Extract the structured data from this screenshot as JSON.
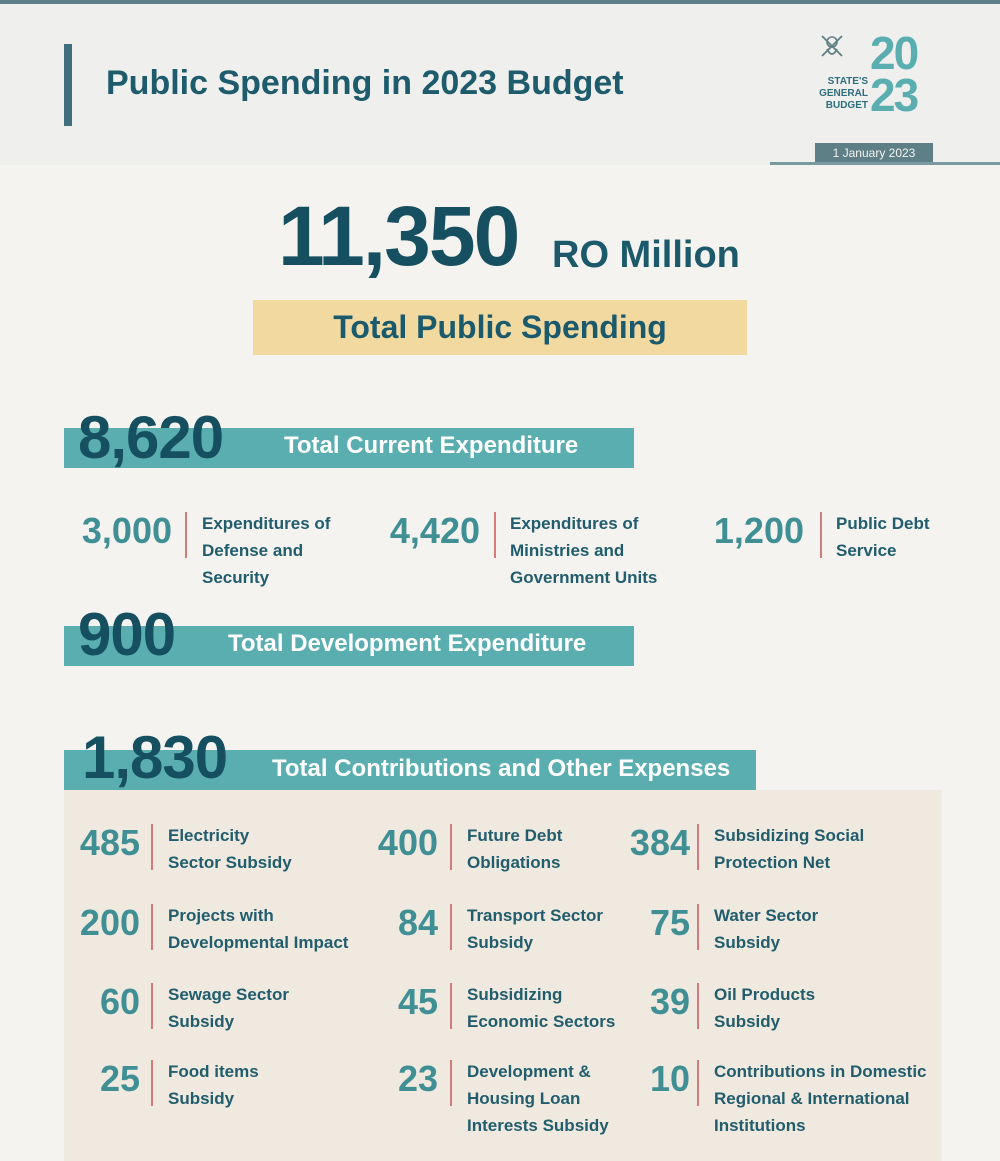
{
  "header": {
    "title": "Public Spending in 2023 Budget",
    "logo": {
      "line1": "STATE'S",
      "line2": "GENERAL",
      "line3": "BUDGET",
      "year_top": "20",
      "year_bottom": "23"
    },
    "date": "1 January 2023"
  },
  "total": {
    "value": "11,350",
    "unit": "RO Million",
    "label": "Total Public Spending"
  },
  "current": {
    "value": "8,620",
    "label": "Total Current Expenditure",
    "items": [
      {
        "value": "3,000",
        "label": "Expenditures of\nDefense and\nSecurity"
      },
      {
        "value": "4,420",
        "label": "Expenditures of\nMinistries and\nGovernment Units"
      },
      {
        "value": "1,200",
        "label": "Public Debt\nService"
      }
    ]
  },
  "development": {
    "value": "900",
    "label": "Total Development Expenditure"
  },
  "contributions": {
    "value": "1,830",
    "label": "Total Contributions and Other Expenses",
    "items": [
      {
        "value": "485",
        "label": "Electricity\nSector Subsidy"
      },
      {
        "value": "400",
        "label": "Future Debt\nObligations"
      },
      {
        "value": "384",
        "label": "Subsidizing Social\n Protection Net"
      },
      {
        "value": "200",
        "label": "Projects with\nDevelopmental Impact"
      },
      {
        "value": "84",
        "label": "Transport Sector\nSubsidy"
      },
      {
        "value": "75",
        "label": "Water Sector\nSubsidy"
      },
      {
        "value": "60",
        "label": "Sewage Sector\nSubsidy"
      },
      {
        "value": "45",
        "label": "Subsidizing\nEconomic Sectors"
      },
      {
        "value": "39",
        "label": "Oil Products\nSubsidy"
      },
      {
        "value": "25",
        "label": "Food items\nSubsidy"
      },
      {
        "value": "23",
        "label": "Development &\nHousing Loan\nInterests Subsidy"
      },
      {
        "value": "10",
        "label": "Contributions in Domestic\nRegional & International\nInstitutions"
      }
    ]
  },
  "colors": {
    "teal": "#5aaeb0",
    "dark_teal": "#154f60",
    "gold": "#f1d9a0",
    "divider_red": "#d57a7a"
  }
}
